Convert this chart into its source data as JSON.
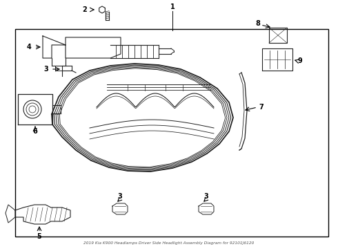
{
  "bg_color": "#ffffff",
  "line_color": "#222222",
  "border": [
    22,
    18,
    454,
    300
  ],
  "figsize": [
    4.9,
    3.6
  ],
  "dpi": 100
}
